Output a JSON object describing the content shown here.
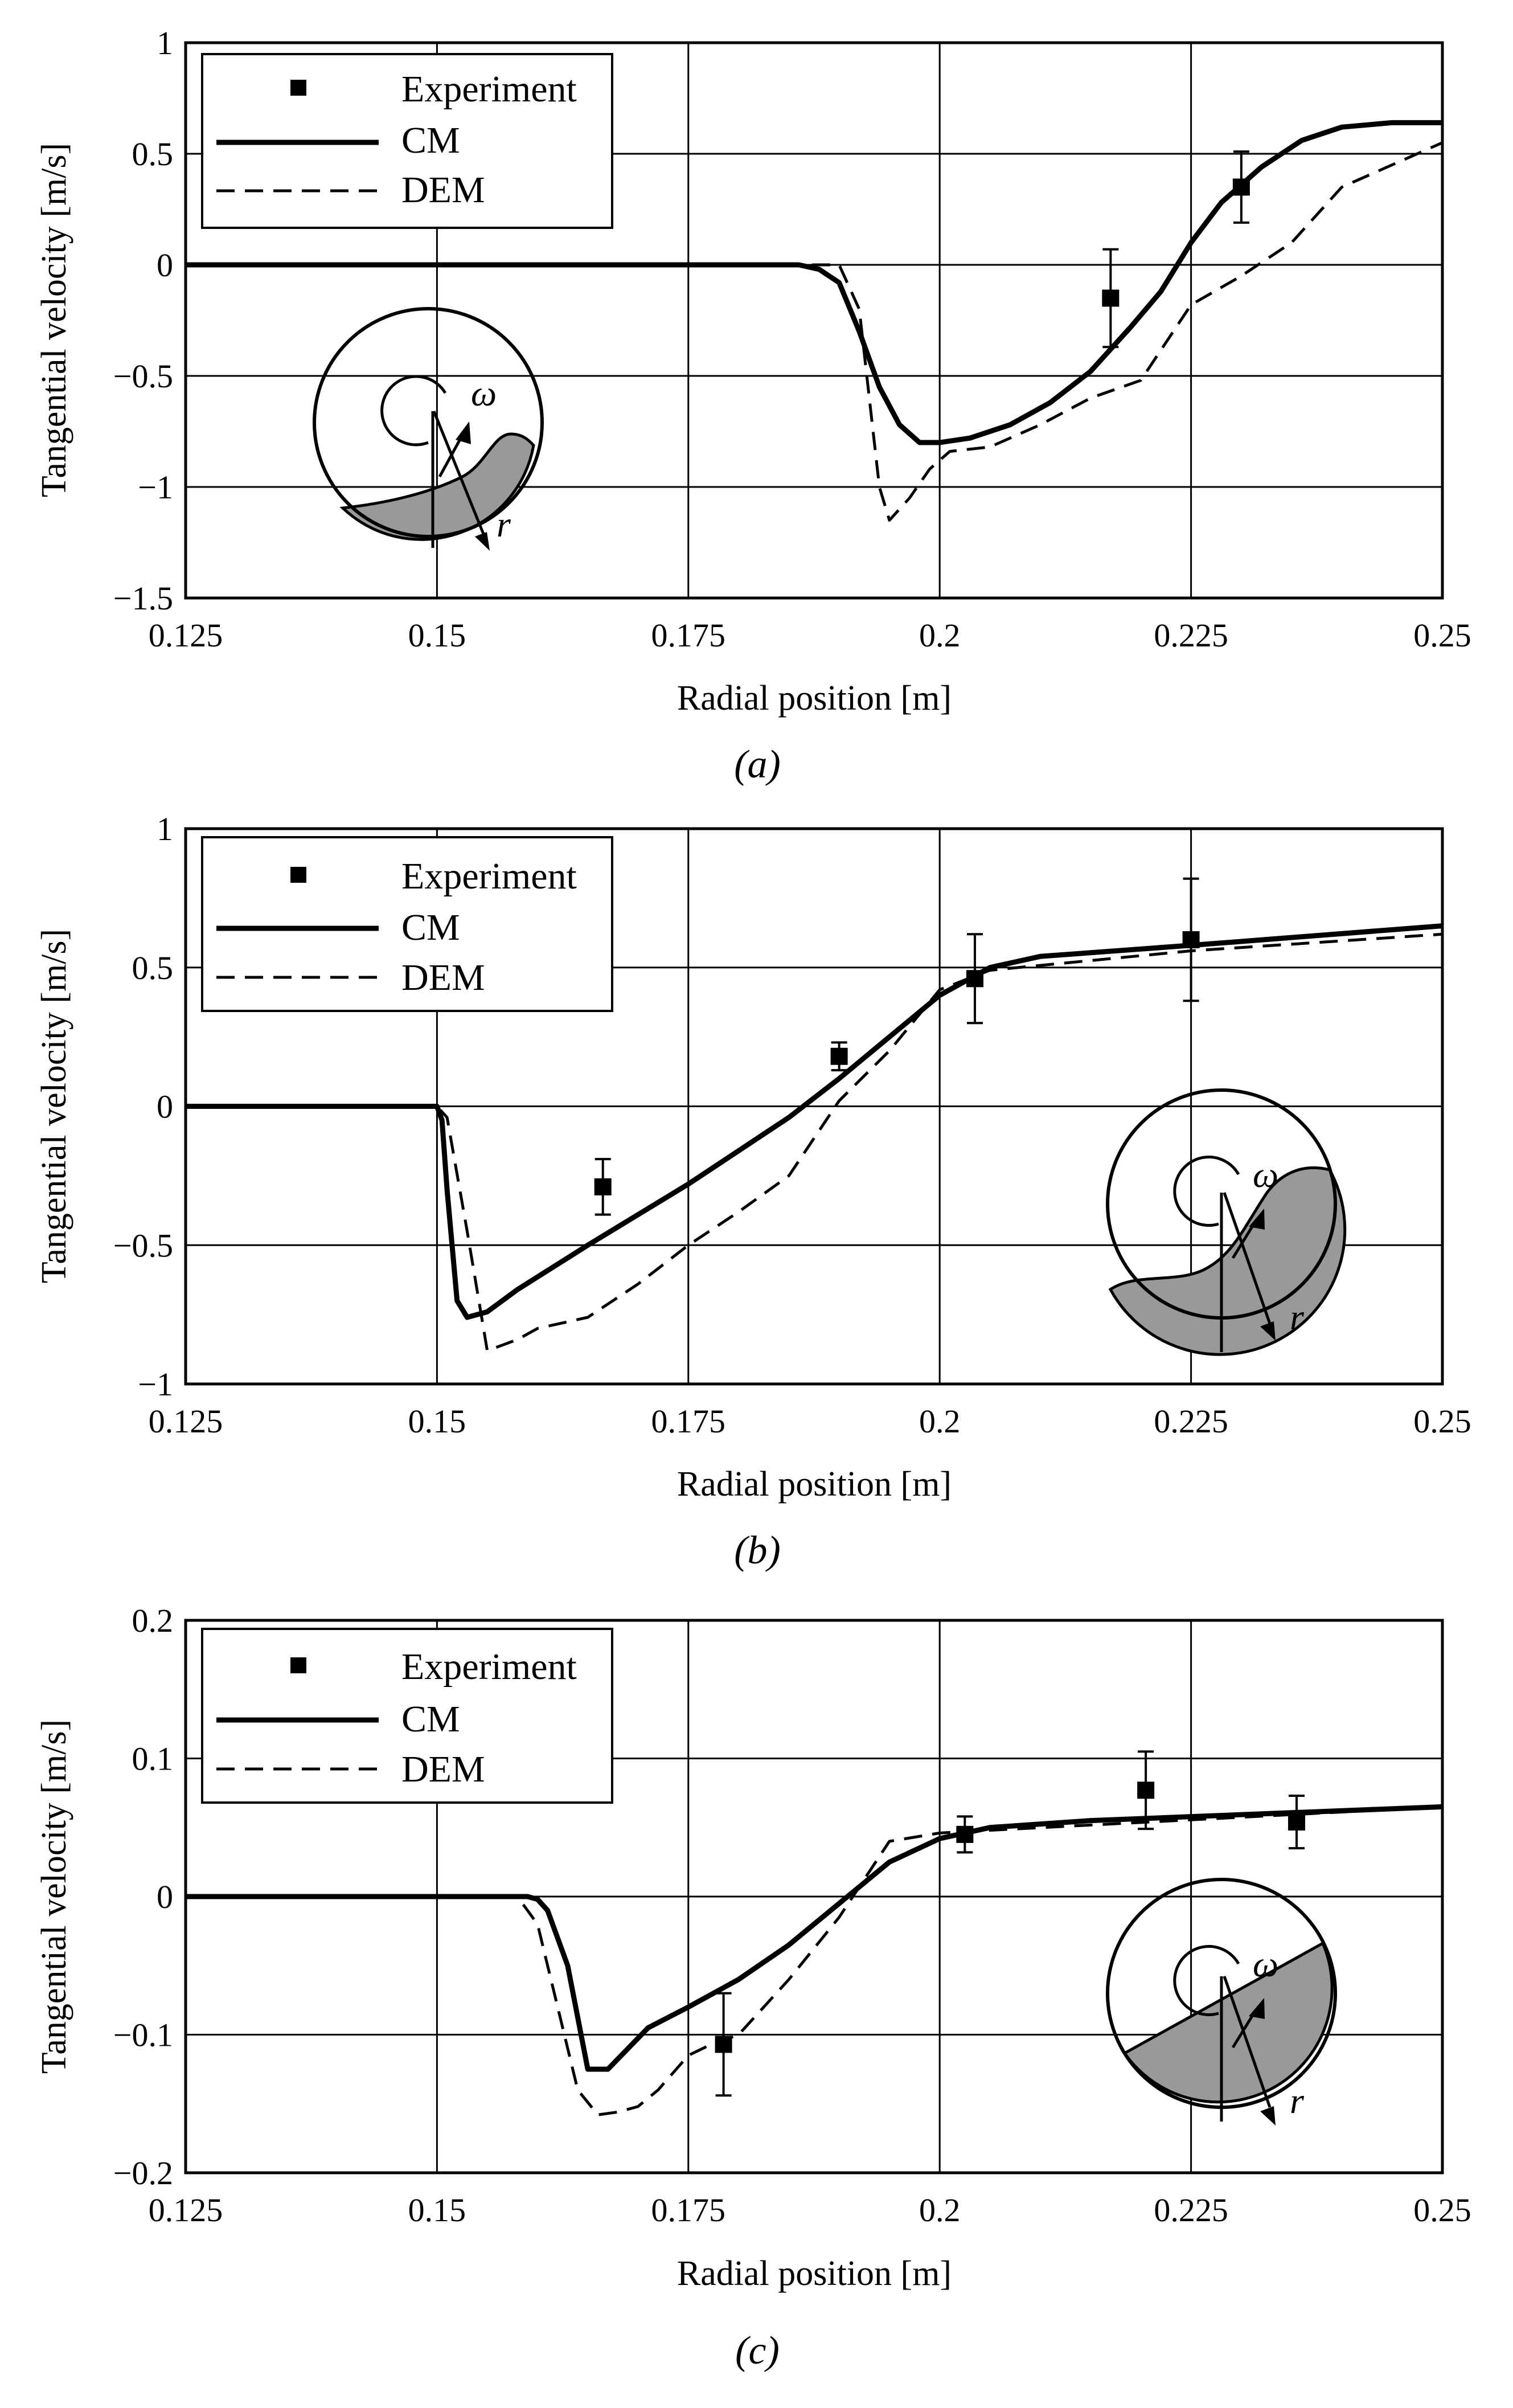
{
  "colors": {
    "ink": "#000000",
    "grid": "#000000",
    "fill": "#999999",
    "background": "#ffffff"
  },
  "chart_data": [
    {
      "type": "line",
      "caption": "(a)",
      "xlabel": "Radial position [m]",
      "ylabel": "Tangential velocity [m/s]",
      "xlim": [
        0.125,
        0.25
      ],
      "ylim": [
        -1.5,
        1
      ],
      "xticks": [
        0.125,
        0.15,
        0.175,
        0.2,
        0.225,
        0.25
      ],
      "xtick_labels": [
        "0.125",
        "0.15",
        "0.175",
        "0.2",
        "0.225",
        "0.25"
      ],
      "yticks": [
        -1.5,
        -1,
        -0.5,
        0,
        0.5,
        1
      ],
      "ytick_labels": [
        "−1.5",
        "−1",
        "−0.5",
        "0",
        "0.5",
        "1"
      ],
      "grid": true,
      "legend": {
        "position": "top-left",
        "entries": [
          "Experiment",
          "CM",
          "DEM"
        ]
      },
      "inset": {
        "position": "lower-left",
        "omega": "ω",
        "r": "r",
        "fill_shape": "low-right-arc"
      },
      "series": [
        {
          "name": "CM",
          "style": "solid",
          "x": [
            0.125,
            0.186,
            0.188,
            0.19,
            0.192,
            0.194,
            0.196,
            0.198,
            0.2,
            0.203,
            0.207,
            0.211,
            0.215,
            0.219,
            0.222,
            0.225,
            0.228,
            0.232,
            0.236,
            0.24,
            0.245,
            0.25
          ],
          "y": [
            0,
            0,
            -0.02,
            -0.08,
            -0.3,
            -0.55,
            -0.72,
            -0.8,
            -0.8,
            -0.78,
            -0.72,
            -0.62,
            -0.48,
            -0.28,
            -0.12,
            0.1,
            0.28,
            0.44,
            0.56,
            0.62,
            0.64,
            0.64
          ]
        },
        {
          "name": "DEM",
          "style": "dashed",
          "x": [
            0.125,
            0.189,
            0.19,
            0.192,
            0.193,
            0.194,
            0.195,
            0.197,
            0.199,
            0.201,
            0.205,
            0.21,
            0.215,
            0.22,
            0.225,
            0.23,
            0.235,
            0.24,
            0.245,
            0.25
          ],
          "y": [
            0,
            0,
            0,
            -0.2,
            -0.6,
            -1.0,
            -1.15,
            -1.05,
            -0.92,
            -0.84,
            -0.82,
            -0.72,
            -0.6,
            -0.52,
            -0.18,
            -0.05,
            0.1,
            0.35,
            0.45,
            0.55
          ]
        },
        {
          "name": "Experiment",
          "style": "marker",
          "x": [
            0.217,
            0.23
          ],
          "y": [
            -0.15,
            0.35
          ],
          "err": [
            0.22,
            0.16
          ]
        }
      ]
    },
    {
      "type": "line",
      "caption": "(b)",
      "xlabel": "Radial position [m]",
      "ylabel": "Tangential velocity [m/s]",
      "xlim": [
        0.125,
        0.25
      ],
      "ylim": [
        -1,
        1
      ],
      "xticks": [
        0.125,
        0.15,
        0.175,
        0.2,
        0.225,
        0.25
      ],
      "xtick_labels": [
        "0.125",
        "0.15",
        "0.175",
        "0.2",
        "0.225",
        "0.25"
      ],
      "yticks": [
        -1,
        -0.5,
        0,
        0.5,
        1
      ],
      "ytick_labels": [
        "−1",
        "−0.5",
        "0",
        "0.5",
        "1"
      ],
      "grid": true,
      "legend": {
        "position": "top-left",
        "entries": [
          "Experiment",
          "CM",
          "DEM"
        ]
      },
      "inset": {
        "position": "lower-right",
        "omega": "ω",
        "r": "r",
        "fill_shape": "wave"
      },
      "series": [
        {
          "name": "CM",
          "style": "solid",
          "x": [
            0.125,
            0.15,
            0.1505,
            0.151,
            0.152,
            0.153,
            0.155,
            0.158,
            0.165,
            0.175,
            0.185,
            0.19,
            0.195,
            0.2,
            0.205,
            0.21,
            0.225,
            0.25
          ],
          "y": [
            0,
            0,
            -0.05,
            -0.3,
            -0.7,
            -0.76,
            -0.74,
            -0.66,
            -0.5,
            -0.28,
            -0.04,
            0.1,
            0.25,
            0.4,
            0.5,
            0.54,
            0.58,
            0.65
          ]
        },
        {
          "name": "DEM",
          "style": "dashed",
          "x": [
            0.125,
            0.15,
            0.151,
            0.153,
            0.155,
            0.158,
            0.16,
            0.165,
            0.17,
            0.175,
            0.18,
            0.185,
            0.19,
            0.195,
            0.2,
            0.205,
            0.225,
            0.25
          ],
          "y": [
            0,
            0,
            -0.04,
            -0.45,
            -0.88,
            -0.84,
            -0.8,
            -0.76,
            -0.64,
            -0.5,
            -0.38,
            -0.25,
            0.02,
            0.2,
            0.42,
            0.49,
            0.56,
            0.62
          ]
        },
        {
          "name": "Experiment",
          "style": "marker",
          "x": [
            0.1665,
            0.19,
            0.2035,
            0.225
          ],
          "y": [
            -0.29,
            0.18,
            0.46,
            0.6
          ],
          "err": [
            0.1,
            0.05,
            0.16,
            0.22
          ]
        }
      ]
    },
    {
      "type": "line",
      "caption": "(c)",
      "xlabel": "Radial position [m]",
      "ylabel": "Tangential velocity [m/s]",
      "xlim": [
        0.125,
        0.25
      ],
      "ylim": [
        -0.2,
        0.2
      ],
      "xticks": [
        0.125,
        0.15,
        0.175,
        0.2,
        0.225,
        0.25
      ],
      "xtick_labels": [
        "0.125",
        "0.15",
        "0.175",
        "0.2",
        "0.225",
        "0.25"
      ],
      "yticks": [
        -0.2,
        -0.1,
        0,
        0.1,
        0.2
      ],
      "ytick_labels": [
        "−0.2",
        "−0.1",
        "0",
        "0.1",
        "0.2"
      ],
      "grid": true,
      "legend": {
        "position": "top-left",
        "entries": [
          "Experiment",
          "CM",
          "DEM"
        ]
      },
      "inset": {
        "position": "lower-right",
        "omega": "ω",
        "r": "r",
        "fill_shape": "wedge"
      },
      "series": [
        {
          "name": "CM",
          "style": "solid",
          "x": [
            0.125,
            0.159,
            0.16,
            0.161,
            0.163,
            0.165,
            0.167,
            0.169,
            0.171,
            0.175,
            0.18,
            0.185,
            0.19,
            0.195,
            0.2,
            0.205,
            0.215,
            0.25
          ],
          "y": [
            0,
            0,
            -0.002,
            -0.01,
            -0.05,
            -0.125,
            -0.125,
            -0.11,
            -0.095,
            -0.08,
            -0.06,
            -0.035,
            -0.005,
            0.025,
            0.042,
            0.05,
            0.055,
            0.065
          ]
        },
        {
          "name": "DEM",
          "style": "dashed",
          "x": [
            0.125,
            0.158,
            0.16,
            0.162,
            0.164,
            0.166,
            0.168,
            0.17,
            0.172,
            0.175,
            0.177,
            0.18,
            0.185,
            0.19,
            0.195,
            0.2,
            0.205,
            0.25
          ],
          "y": [
            0,
            0,
            -0.02,
            -0.08,
            -0.14,
            -0.158,
            -0.156,
            -0.152,
            -0.14,
            -0.115,
            -0.108,
            -0.1,
            -0.06,
            -0.015,
            0.04,
            0.046,
            0.048,
            0.065
          ]
        },
        {
          "name": "Experiment",
          "style": "marker",
          "x": [
            0.1785,
            0.2025,
            0.2205,
            0.2355
          ],
          "y": [
            -0.107,
            0.045,
            0.077,
            0.054
          ],
          "err": [
            0.037,
            0.013,
            0.028,
            0.019
          ]
        }
      ]
    }
  ]
}
